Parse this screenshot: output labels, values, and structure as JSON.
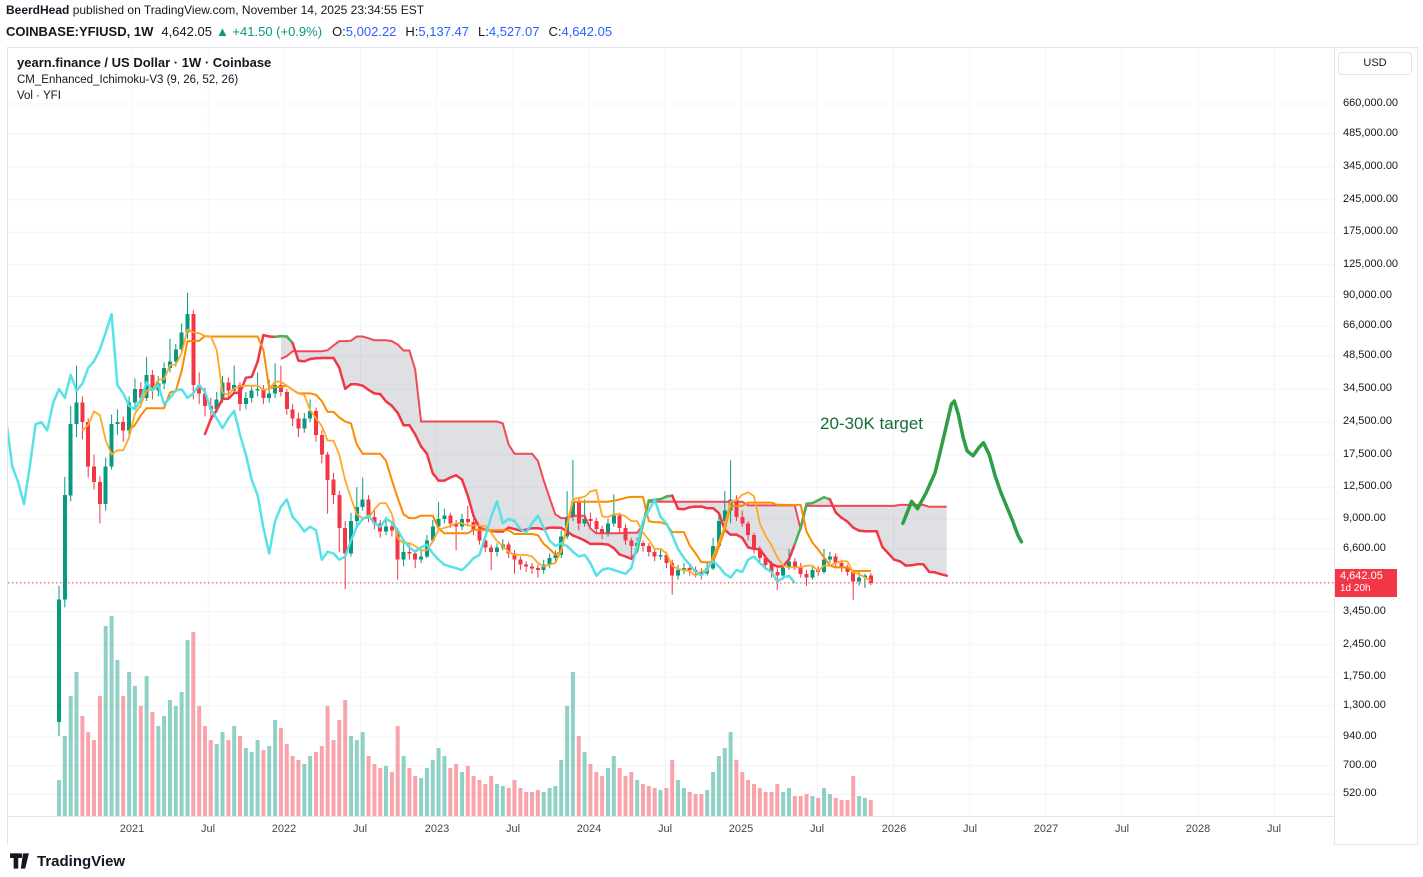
{
  "header": {
    "author": "BeerdHead",
    "published": " published on TradingView.com, November 14, 2025 23:34:55 EST"
  },
  "symbol_bar": {
    "symbol": "COINBASE:YFIUSD, 1W",
    "price": "4,642.05",
    "change": "▲ +41.50 (+0.9%)",
    "ohlc": [
      {
        "label": "O:",
        "value": "5,002.22"
      },
      {
        "label": "H:",
        "value": "5,137.47"
      },
      {
        "label": "L:",
        "value": "4,527.07"
      },
      {
        "label": "C:",
        "value": "4,642.05"
      }
    ]
  },
  "legend": {
    "title": "yearn.finance / US Dollar · 1W · Coinbase",
    "indicator": "CM_Enhanced_Ichimoku-V3 (9, 26, 52, 26)",
    "volume": "Vol · YFI"
  },
  "price_scale": {
    "currency": "USD",
    "tag": "4,642.05",
    "countdown": "1d 20h"
  },
  "footer": {
    "brand": "TradingView"
  },
  "chart_data": {
    "type": "candlestick",
    "title": "yearn.finance / US Dollar · 1W · Coinbase",
    "symbol": "COINBASE:YFIUSD",
    "interval": "1W",
    "y_scale": "log",
    "current_price": 4642.05,
    "countdown": "1d 20h",
    "y_ticks": [
      {
        "v": 660000,
        "label": "660,000.00"
      },
      {
        "v": 485000,
        "label": "485,000.00"
      },
      {
        "v": 345000,
        "label": "345,000.00"
      },
      {
        "v": 245000,
        "label": "245,000.00"
      },
      {
        "v": 175000,
        "label": "175,000.00"
      },
      {
        "v": 125000,
        "label": "125,000.00"
      },
      {
        "v": 90000,
        "label": "90,000.00"
      },
      {
        "v": 66000,
        "label": "66,000.00"
      },
      {
        "v": 48500,
        "label": "48,500.00"
      },
      {
        "v": 34500,
        "label": "34,500.00"
      },
      {
        "v": 24500,
        "label": "24,500.00"
      },
      {
        "v": 17500,
        "label": "17,500.00"
      },
      {
        "v": 12500,
        "label": "12,500.00"
      },
      {
        "v": 9000,
        "label": "9,000.00"
      },
      {
        "v": 6600,
        "label": "6,600.00"
      },
      {
        "v": 3450,
        "label": "3,450.00"
      },
      {
        "v": 2450,
        "label": "2,450.00"
      },
      {
        "v": 1750,
        "label": "1,750.00"
      },
      {
        "v": 1300,
        "label": "1,300.00"
      },
      {
        "v": 940,
        "label": "940.00"
      },
      {
        "v": 700,
        "label": "700.00"
      },
      {
        "v": 520,
        "label": "520.00"
      }
    ],
    "x_ticks": [
      {
        "label": "2021",
        "yf": 2021.0
      },
      {
        "label": "Jul",
        "yf": 2021.5
      },
      {
        "label": "2022",
        "yf": 2022.0
      },
      {
        "label": "Jul",
        "yf": 2022.5
      },
      {
        "label": "2023",
        "yf": 2023.0
      },
      {
        "label": "Jul",
        "yf": 2023.5
      },
      {
        "label": "2024",
        "yf": 2024.0
      },
      {
        "label": "Jul",
        "yf": 2024.5
      },
      {
        "label": "2025",
        "yf": 2025.0
      },
      {
        "label": "Jul",
        "yf": 2025.5
      },
      {
        "label": "2026",
        "yf": 2026.0
      },
      {
        "label": "Jul",
        "yf": 2026.5
      },
      {
        "label": "2027",
        "yf": 2027.0
      },
      {
        "label": "Jul",
        "yf": 2027.5
      },
      {
        "label": "2028",
        "yf": 2028.0
      },
      {
        "label": "Jul",
        "yf": 2028.5
      }
    ],
    "ichimoku": {
      "label": "CM_Enhanced_Ichimoku-V3 (9, 26, 52, 26)",
      "render_periods": {
        "tenkan": 5,
        "kijun": 13,
        "senkou_b": 26,
        "displacement": 13
      }
    },
    "projection": {
      "label": "20-30K target",
      "points": [
        [
          144.5,
          8600
        ],
        [
          146,
          10800
        ],
        [
          147,
          10000
        ],
        [
          148.5,
          11800
        ],
        [
          150,
          14500
        ],
        [
          151,
          18500
        ],
        [
          152,
          24000
        ],
        [
          152.8,
          29500
        ],
        [
          153.3,
          30500
        ],
        [
          154,
          26500
        ],
        [
          154.8,
          21000
        ],
        [
          155.5,
          18200
        ],
        [
          156.5,
          17300
        ],
        [
          157.5,
          18800
        ],
        [
          158.3,
          19800
        ],
        [
          159.3,
          17500
        ],
        [
          160.3,
          14000
        ],
        [
          161.3,
          11800
        ],
        [
          162.3,
          10200
        ],
        [
          163.3,
          8800
        ],
        [
          164.2,
          7600
        ],
        [
          164.8,
          7100
        ]
      ]
    },
    "colors": {
      "up": "#089981",
      "down": "#f23645",
      "vol_up": "rgba(8,153,129,0.45)",
      "vol_down": "rgba(242,54,69,0.45)",
      "tenkan": "#ffa726",
      "kijun": "#fb8c00",
      "bull": "#4caf50",
      "bear": "#f23645",
      "cloud_fill": "rgba(140,145,155,0.28)",
      "chikou": "#4fe0e6",
      "projection": "#2f9e44",
      "current_line": "#f23645",
      "grid": "#f2f4f9"
    },
    "candles": [
      [
        1100,
        4500,
        950,
        3900
      ],
      [
        3900,
        13900,
        3600,
        11500
      ],
      [
        11500,
        29000,
        10800,
        24000
      ],
      [
        24000,
        44000,
        21000,
        30000
      ],
      [
        30000,
        32000,
        20500,
        24500
      ],
      [
        24500,
        25500,
        13800,
        15500
      ],
      [
        15500,
        17500,
        12200,
        13200
      ],
      [
        13200,
        14000,
        8600,
        10500
      ],
      [
        10500,
        17000,
        9800,
        15500
      ],
      [
        15500,
        26500,
        15000,
        24000
      ],
      [
        24000,
        28000,
        21500,
        24500
      ],
      [
        24500,
        26000,
        20000,
        22500
      ],
      [
        22500,
        32000,
        20500,
        30000
      ],
      [
        30000,
        38500,
        28000,
        34500
      ],
      [
        34500,
        37000,
        28500,
        31500
      ],
      [
        31500,
        48000,
        30500,
        40000
      ],
      [
        40000,
        42000,
        31000,
        34000
      ],
      [
        34000,
        39500,
        32000,
        36500
      ],
      [
        36500,
        45500,
        34500,
        43000
      ],
      [
        43000,
        58000,
        41000,
        46000
      ],
      [
        46000,
        55000,
        43500,
        52000
      ],
      [
        52000,
        68000,
        50000,
        62000
      ],
      [
        62000,
        93400,
        58000,
        75000
      ],
      [
        75000,
        78000,
        31000,
        36000
      ],
      [
        36000,
        41000,
        29500,
        33000
      ],
      [
        33000,
        35000,
        26000,
        29000
      ],
      [
        29000,
        31500,
        25500,
        28000
      ],
      [
        28000,
        33500,
        27000,
        31000
      ],
      [
        31000,
        39500,
        30000,
        37000
      ],
      [
        37000,
        39000,
        31500,
        34000
      ],
      [
        34000,
        44000,
        33000,
        36000
      ],
      [
        36000,
        37000,
        27500,
        29500
      ],
      [
        29500,
        33500,
        28000,
        31500
      ],
      [
        31500,
        36000,
        30000,
        34000
      ],
      [
        34000,
        41000,
        32000,
        34500
      ],
      [
        34500,
        36000,
        29500,
        31500
      ],
      [
        31500,
        38000,
        30000,
        33000
      ],
      [
        33000,
        45000,
        31500,
        36000
      ],
      [
        36000,
        44000,
        32000,
        33500
      ],
      [
        33500,
        34500,
        26500,
        28000
      ],
      [
        28000,
        29500,
        23500,
        25500
      ],
      [
        25500,
        27000,
        21000,
        23000
      ],
      [
        23000,
        27000,
        22000,
        25500
      ],
      [
        25500,
        31000,
        24500,
        27500
      ],
      [
        27500,
        28500,
        20000,
        21500
      ],
      [
        21500,
        22500,
        16000,
        17500
      ],
      [
        17500,
        18000,
        9500,
        13500
      ],
      [
        13500,
        14500,
        10500,
        11500
      ],
      [
        11500,
        12000,
        6400,
        8200
      ],
      [
        8200,
        8800,
        4350,
        6300
      ],
      [
        6300,
        9600,
        6100,
        8800
      ],
      [
        8800,
        12500,
        8300,
        10200
      ],
      [
        10200,
        13800,
        9800,
        11000
      ],
      [
        11000,
        11500,
        8700,
        9200
      ],
      [
        9200,
        9900,
        8100,
        8600
      ],
      [
        8600,
        8900,
        7400,
        7900
      ],
      [
        7900,
        9200,
        7600,
        8300
      ],
      [
        8300,
        8800,
        7500,
        8000
      ],
      [
        8000,
        8200,
        4800,
        5900
      ],
      [
        5900,
        7000,
        5500,
        6400
      ],
      [
        6400,
        6900,
        5900,
        6300
      ],
      [
        6300,
        6500,
        5400,
        5900
      ],
      [
        5900,
        6500,
        5700,
        6100
      ],
      [
        6100,
        7600,
        6000,
        7200
      ],
      [
        7200,
        8900,
        7000,
        8300
      ],
      [
        8300,
        10700,
        8000,
        9000
      ],
      [
        9000,
        10000,
        8600,
        9300
      ],
      [
        9300,
        9600,
        8200,
        8600
      ],
      [
        8600,
        8900,
        6500,
        8300
      ],
      [
        8300,
        9500,
        8000,
        9000
      ],
      [
        9000,
        10300,
        8400,
        8700
      ],
      [
        8700,
        9000,
        7600,
        8000
      ],
      [
        8000,
        8300,
        6900,
        7200
      ],
      [
        7200,
        7500,
        6400,
        6700
      ],
      [
        6700,
        6900,
        5300,
        6400
      ],
      [
        6400,
        7000,
        6100,
        6700
      ],
      [
        6700,
        7300,
        6500,
        6900
      ],
      [
        6900,
        7100,
        6000,
        6300
      ],
      [
        6300,
        6500,
        5100,
        5900
      ],
      [
        5900,
        6100,
        5300,
        5600
      ],
      [
        5600,
        5800,
        5200,
        5500
      ],
      [
        5500,
        5700,
        5100,
        5400
      ],
      [
        5400,
        5600,
        4900,
        5300
      ],
      [
        5300,
        5900,
        5100,
        5600
      ],
      [
        5600,
        6300,
        5400,
        6000
      ],
      [
        6000,
        6500,
        5800,
        6200
      ],
      [
        6200,
        8000,
        6000,
        7500
      ],
      [
        7500,
        12000,
        7300,
        9200
      ],
      [
        9200,
        16600,
        8800,
        10800
      ],
      [
        10800,
        11200,
        8000,
        8600
      ],
      [
        8600,
        11000,
        8300,
        9000
      ],
      [
        9000,
        9600,
        8300,
        8800
      ],
      [
        8800,
        9100,
        7700,
        8100
      ],
      [
        8100,
        8400,
        7300,
        7800
      ],
      [
        7800,
        9000,
        7500,
        8600
      ],
      [
        8600,
        11600,
        8300,
        9300
      ],
      [
        9300,
        9600,
        7800,
        8200
      ],
      [
        8200,
        8500,
        6900,
        7200
      ],
      [
        7200,
        7400,
        6000,
        6800
      ],
      [
        6800,
        7400,
        6500,
        7000
      ],
      [
        7000,
        7200,
        6400,
        6800
      ],
      [
        6800,
        7000,
        6100,
        6400
      ],
      [
        6400,
        6600,
        5800,
        6100
      ],
      [
        6100,
        6500,
        5900,
        6200
      ],
      [
        6200,
        6400,
        5400,
        5700
      ],
      [
        5700,
        5900,
        4100,
        5000
      ],
      [
        5000,
        5600,
        4800,
        5300
      ],
      [
        5300,
        5700,
        5100,
        5400
      ],
      [
        5400,
        5600,
        5000,
        5300
      ],
      [
        5300,
        5500,
        4900,
        5200
      ],
      [
        5200,
        5400,
        4800,
        5100
      ],
      [
        5100,
        5700,
        5000,
        5400
      ],
      [
        5400,
        7400,
        5300,
        6800
      ],
      [
        6800,
        9400,
        6600,
        8800
      ],
      [
        8800,
        12000,
        8500,
        9800
      ],
      [
        9800,
        16500,
        8600,
        11000
      ],
      [
        11000,
        11500,
        8800,
        9200
      ],
      [
        9200,
        9800,
        8300,
        8600
      ],
      [
        8600,
        8800,
        7200,
        7600
      ],
      [
        7600,
        7800,
        6300,
        6600
      ],
      [
        6600,
        6800,
        5700,
        6000
      ],
      [
        6000,
        6200,
        5300,
        5600
      ],
      [
        5600,
        5800,
        4900,
        5200
      ],
      [
        5200,
        5400,
        4300,
        5000
      ],
      [
        5000,
        5600,
        4800,
        5400
      ],
      [
        5400,
        6600,
        5300,
        5800
      ],
      [
        5800,
        6000,
        5300,
        5500
      ],
      [
        5500,
        5700,
        4900,
        5100
      ],
      [
        5100,
        5300,
        4500,
        4900
      ],
      [
        4900,
        5500,
        4800,
        5300
      ],
      [
        5300,
        5500,
        5000,
        5200
      ],
      [
        5200,
        6600,
        5100,
        5900
      ],
      [
        5900,
        6400,
        5700,
        6100
      ],
      [
        6100,
        6300,
        5500,
        5700
      ],
      [
        5700,
        5900,
        5200,
        5400
      ],
      [
        5400,
        5600,
        5000,
        5200
      ],
      [
        5200,
        5300,
        3900,
        4700
      ],
      [
        4700,
        5200,
        4500,
        4900
      ],
      [
        4900,
        5100,
        4400,
        5000
      ],
      [
        5002.22,
        5137.47,
        4527.07,
        4642.05
      ]
    ],
    "volume": [
      18,
      40,
      60,
      72,
      50,
      42,
      38,
      60,
      95,
      100,
      78,
      60,
      72,
      65,
      55,
      70,
      52,
      45,
      50,
      58,
      55,
      62,
      88,
      92,
      55,
      45,
      38,
      36,
      42,
      38,
      45,
      40,
      34,
      32,
      38,
      33,
      35,
      48,
      44,
      36,
      30,
      28,
      26,
      30,
      32,
      35,
      55,
      38,
      48,
      58,
      40,
      38,
      42,
      30,
      26,
      24,
      25,
      22,
      45,
      30,
      24,
      20,
      19,
      24,
      28,
      34,
      30,
      24,
      26,
      22,
      25,
      20,
      18,
      16,
      20,
      16,
      15,
      14,
      18,
      14,
      12,
      12,
      13,
      12,
      14,
      15,
      28,
      55,
      72,
      40,
      32,
      26,
      22,
      20,
      24,
      30,
      24,
      20,
      22,
      18,
      16,
      15,
      14,
      13,
      14,
      28,
      18,
      14,
      12,
      11,
      11,
      13,
      22,
      30,
      34,
      42,
      28,
      22,
      18,
      16,
      14,
      12,
      12,
      16,
      12,
      14,
      10,
      10,
      11,
      10,
      9,
      14,
      11,
      9,
      8,
      8,
      20,
      10,
      9,
      8
    ]
  }
}
